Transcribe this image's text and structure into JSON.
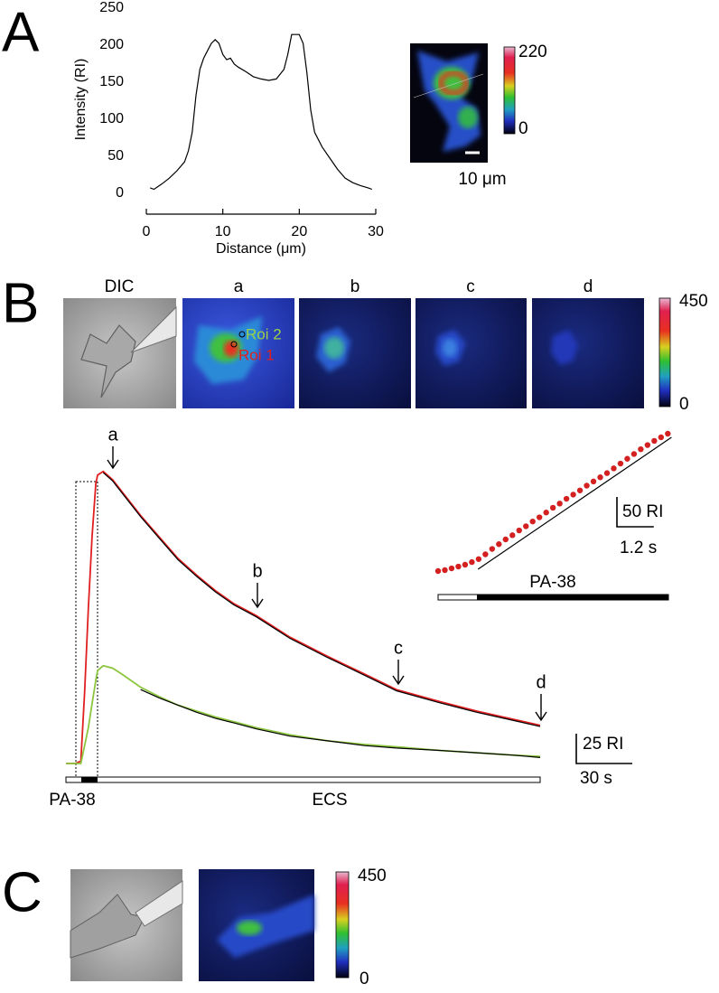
{
  "panel_labels": [
    "A",
    "B",
    "C"
  ],
  "panel_a": {
    "colorbar": {
      "max": 220,
      "min": 0
    },
    "scale_bar_label": "10 μm"
  },
  "panel_b": {
    "image_labels": [
      "DIC",
      "a",
      "b",
      "c",
      "d"
    ],
    "colorbar": {
      "max": 450,
      "min": 0
    },
    "arrow_labels": [
      "a",
      "b",
      "c",
      "d"
    ],
    "stimulus_labels": [
      "PA-38",
      "ECS"
    ],
    "scale_bars": [
      {
        "value": 25,
        "label": "25 RI"
      },
      {
        "value": 30,
        "label": "30 s"
      }
    ],
    "inset_stimulus_label": "PA-38",
    "inset_scale_bars": [
      {
        "value": 50,
        "label": "50 RI"
      },
      {
        "value": 1.2,
        "label": "1.2 s"
      }
    ]
  },
  "panel_c": {
    "colorbar": {
      "max": 450,
      "min": 0
    }
  },
  "chart_data": [
    {
      "type": "line",
      "x_label": "Distance (μm)",
      "y_label": "Intensity (RI)",
      "x": [
        0.5,
        1,
        2,
        3,
        4,
        5,
        5.5,
        6,
        6.5,
        7,
        7.5,
        8,
        8.5,
        9,
        9.5,
        10,
        10.5,
        11,
        11.5,
        12,
        13,
        14,
        15,
        16,
        17,
        18,
        18.5,
        19,
        20,
        20.5,
        21,
        21.5,
        22,
        23,
        24,
        25,
        26,
        27,
        28,
        29,
        29.5
      ],
      "series": [
        {
          "color": "#000000",
          "values": [
            5,
            3,
            10,
            18,
            28,
            40,
            55,
            80,
            130,
            165,
            180,
            190,
            200,
            205,
            200,
            185,
            178,
            180,
            172,
            168,
            162,
            155,
            152,
            150,
            152,
            165,
            185,
            212,
            212,
            200,
            160,
            110,
            80,
            60,
            45,
            30,
            18,
            12,
            8,
            5,
            3
          ]
        }
      ],
      "xlim": [
        0,
        30
      ],
      "xticks": [
        0,
        10,
        20,
        30
      ],
      "ylim": [
        0,
        250
      ],
      "yticks": [
        0,
        50,
        100,
        150,
        200,
        250
      ]
    },
    {
      "type": "line",
      "x": [
        0,
        5,
        8,
        10,
        12,
        14,
        16,
        17,
        20,
        25,
        30,
        40,
        50,
        60,
        70,
        80,
        90,
        102,
        120,
        140,
        160,
        177,
        200,
        220,
        240,
        254
      ],
      "series": [
        {
          "name": "Roi 1",
          "color": "#e02020",
          "values": [
            0,
            0,
            2,
            60,
            130,
            190,
            235,
            242,
            245,
            238,
            228,
            208,
            190,
            172,
            158,
            145,
            134,
            124,
            106,
            90,
            75,
            62,
            52,
            44,
            37,
            32
          ]
        },
        {
          "name": "Roi 2",
          "color": "#8cc63f",
          "values": [
            0,
            0,
            0,
            15,
            30,
            50,
            70,
            78,
            82,
            80,
            75,
            64,
            56,
            49,
            44,
            39,
            35,
            30,
            24,
            19,
            16,
            14,
            11,
            9,
            7,
            6
          ]
        },
        {
          "color": "#000000",
          "values": [
            null,
            null,
            null,
            null,
            null,
            null,
            null,
            null,
            244,
            237,
            227,
            207,
            189,
            171,
            157,
            144,
            133,
            123,
            105,
            89,
            74,
            61,
            51,
            43,
            36,
            31
          ]
        },
        {
          "color": "#000000",
          "values": [
            null,
            null,
            null,
            null,
            null,
            null,
            null,
            null,
            null,
            null,
            null,
            62,
            55,
            49,
            43,
            38,
            34,
            29,
            23,
            19,
            15,
            13,
            11,
            9,
            7,
            5
          ]
        }
      ],
      "xlim": [
        0,
        254
      ],
      "ylim": [
        0,
        260
      ]
    },
    {
      "type": "scatter",
      "series": [
        {
          "color": "#d42020",
          "marker": "dot",
          "x": [
            0,
            0.22,
            0.44,
            0.66,
            0.88,
            1.1,
            1.32,
            1.54,
            1.76,
            1.98,
            2.2,
            2.42,
            2.64,
            2.86,
            3.08,
            3.3,
            3.52,
            3.74,
            3.96,
            4.18,
            4.4,
            4.62,
            4.84,
            5.06,
            5.28,
            5.5,
            5.72,
            5.94,
            6.16,
            6.38,
            6.6,
            6.82,
            7.04,
            7.26,
            7.48
          ],
          "values": [
            0,
            1.5,
            4.5,
            7.5,
            10.6,
            15,
            20,
            28,
            37,
            45,
            53,
            60,
            68,
            75,
            83,
            90,
            98,
            106,
            113,
            121,
            128,
            135,
            143,
            150,
            157,
            164,
            172,
            180,
            188,
            196,
            204,
            211,
            218,
            224,
            230
          ]
        },
        {
          "color": "#000000",
          "marker": "line",
          "x": [
            1.3,
            7.6
          ],
          "values": [
            3,
            224
          ]
        }
      ],
      "xlim": [
        0,
        7.5
      ],
      "ylim": [
        0,
        230
      ]
    }
  ]
}
